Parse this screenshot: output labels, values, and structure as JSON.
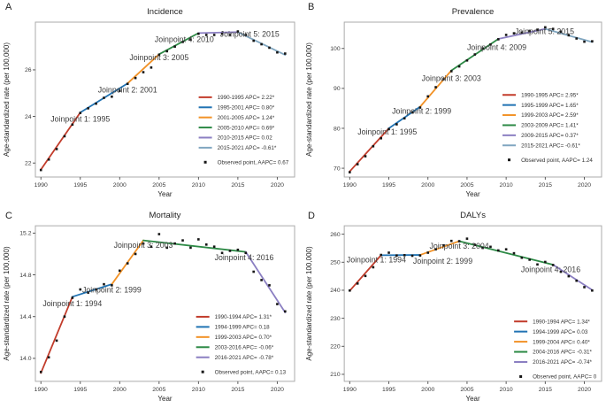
{
  "figure": {
    "x_axis_label": "Year",
    "y_axis_label": "Age-standardized rate (per 100,000)"
  },
  "colors": {
    "segment_palette": [
      "#c23c2b",
      "#2173b3",
      "#f29227",
      "#2d8a46",
      "#8b7fc2",
      "#80a6c0"
    ],
    "observed_point": "#161616",
    "plot_border": "#ababab"
  },
  "chart_data": [
    {
      "type": "line",
      "panel_letter": "A",
      "title": "Incidence",
      "xlabel": "Year",
      "ylabel": "Age-standardized rate (per 100,000)",
      "xlim": [
        1989.3,
        2022.2
      ],
      "ylim": [
        21.4,
        28.05
      ],
      "x_ticks": [
        1990,
        1995,
        2000,
        2005,
        2010,
        2015,
        2020
      ],
      "y_ticks": [
        22,
        24,
        26
      ],
      "y_tick_labels": [
        "22",
        "24",
        "26"
      ],
      "segments": [
        {
          "label": "1990-1995 APC= 2.22*",
          "x": [
            1990,
            1995
          ],
          "y": [
            21.72,
            24.17
          ]
        },
        {
          "label": "1995-2001 APC= 0.80*",
          "x": [
            1995,
            2001
          ],
          "y": [
            24.17,
            25.42
          ]
        },
        {
          "label": "2001-2005 APC= 1.24*",
          "x": [
            2001,
            2005
          ],
          "y": [
            25.42,
            26.67
          ]
        },
        {
          "label": "2005-2010 APC= 0.69*",
          "x": [
            2005,
            2010
          ],
          "y": [
            26.67,
            27.58
          ]
        },
        {
          "label": "2010-2015 APC= 0.02",
          "x": [
            2010,
            2015
          ],
          "y": [
            27.58,
            27.62
          ]
        },
        {
          "label": "2015-2021 APC= -0.61*",
          "x": [
            2015,
            2021
          ],
          "y": [
            27.62,
            26.64
          ]
        }
      ],
      "observed": {
        "legend_label": "Observed point, AAPC= 0.67",
        "x": [
          1990,
          1991,
          1992,
          1993,
          1994,
          1995,
          1996,
          1997,
          1998,
          1999,
          2000,
          2001,
          2002,
          2003,
          2004,
          2005,
          2006,
          2007,
          2008,
          2009,
          2010,
          2011,
          2012,
          2013,
          2014,
          2015,
          2016,
          2017,
          2018,
          2019,
          2020,
          2021
        ],
        "y": [
          21.7,
          22.15,
          22.6,
          23.15,
          23.65,
          24.15,
          24.35,
          24.55,
          24.8,
          24.85,
          25.1,
          25.4,
          25.65,
          25.9,
          26.1,
          26.65,
          26.8,
          27.0,
          27.2,
          27.3,
          27.55,
          27.5,
          27.5,
          27.55,
          27.5,
          27.65,
          27.5,
          27.25,
          27.1,
          26.95,
          26.75,
          26.7
        ]
      },
      "annotations": [
        {
          "text": "Joinpoint 1: 1995",
          "x": 1995.0,
          "y": 23.78
        },
        {
          "text": "Joinpoint 2: 2001",
          "x": 2001.0,
          "y": 25.02
        },
        {
          "text": "Joinpoint 3: 2005",
          "x": 2005.0,
          "y": 26.42
        },
        {
          "text": "Joinpoint 4: 2010",
          "x": 2008.2,
          "y": 27.2
        },
        {
          "text": "Joinpoint 5: 2015",
          "x": 2016.5,
          "y": 27.42
        }
      ],
      "legend": {
        "fx": 0.63,
        "fy": 0.485
      }
    },
    {
      "type": "line",
      "panel_letter": "B",
      "title": "Prevalence",
      "xlabel": "Year",
      "ylabel": "Age-standardized rate (per 100,000)",
      "xlim": [
        1989.3,
        2022.2
      ],
      "ylim": [
        67.8,
        106.6
      ],
      "x_ticks": [
        1990,
        1995,
        2000,
        2005,
        2010,
        2015,
        2020
      ],
      "y_ticks": [
        70,
        80,
        90,
        100
      ],
      "y_tick_labels": [
        "70",
        "80",
        "90",
        "100"
      ],
      "segments": [
        {
          "label": "1990-1995 APC= 2.95*",
          "x": [
            1990,
            1995
          ],
          "y": [
            69.2,
            80.0
          ]
        },
        {
          "label": "1995-1999 APC= 1.65*",
          "x": [
            1995,
            1999
          ],
          "y": [
            80.0,
            85.4
          ]
        },
        {
          "label": "1999-2003 APC= 2.59*",
          "x": [
            1999,
            2003
          ],
          "y": [
            85.4,
            94.5
          ]
        },
        {
          "label": "2003-2009 APC= 1.41*",
          "x": [
            2003,
            2009
          ],
          "y": [
            94.5,
            102.4
          ]
        },
        {
          "label": "2009-2015 APC= 0.37*",
          "x": [
            2009,
            2015
          ],
          "y": [
            102.4,
            104.9
          ]
        },
        {
          "label": "2015-2021 APC= -0.61*",
          "x": [
            2015,
            2021
          ],
          "y": [
            104.9,
            101.6
          ]
        }
      ],
      "observed": {
        "legend_label": "Observed point, AAPC= 1.24",
        "x": [
          1990,
          1991,
          1992,
          1993,
          1994,
          1995,
          1996,
          1997,
          1998,
          1999,
          2000,
          2001,
          2002,
          2003,
          2004,
          2005,
          2006,
          2007,
          2008,
          2009,
          2010,
          2011,
          2012,
          2013,
          2014,
          2015,
          2016,
          2017,
          2018,
          2019,
          2020,
          2021
        ],
        "y": [
          69,
          71,
          73,
          75.5,
          77.5,
          79.8,
          81,
          82.5,
          84,
          85.2,
          88,
          90.3,
          92.3,
          94.3,
          95.5,
          97,
          98.5,
          100,
          101,
          102.3,
          103.4,
          103.8,
          104,
          104.4,
          104.7,
          105.3,
          104.9,
          104.2,
          103.3,
          102.5,
          101.7,
          101.8
        ]
      },
      "annotations": [
        {
          "text": "Joinpoint 1: 1995",
          "x": 1994.8,
          "y": 78.4
        },
        {
          "text": "Joinpoint 2: 1999",
          "x": 1999.2,
          "y": 83.6
        },
        {
          "text": "Joinpoint 3: 2003",
          "x": 2003.0,
          "y": 91.9
        },
        {
          "text": "Joinpoint 4: 2009",
          "x": 2008.8,
          "y": 99.6
        },
        {
          "text": "Joinpoint 5: 2015",
          "x": 2014.9,
          "y": 103.6
        }
      ],
      "legend": {
        "fx": 0.615,
        "fy": 0.47
      }
    },
    {
      "type": "line",
      "panel_letter": "C",
      "title": "Mortality",
      "xlabel": "Year",
      "ylabel": "Age-standardized rate (per 100,000)",
      "xlim": [
        1989.3,
        2022.2
      ],
      "ylim": [
        13.78,
        15.27
      ],
      "x_ticks": [
        1990,
        1995,
        2000,
        2005,
        2010,
        2015,
        2020
      ],
      "y_ticks": [
        14.0,
        14.4,
        14.8,
        15.2
      ],
      "y_tick_labels": [
        "14.0",
        "14.4",
        "14.8",
        "15.2"
      ],
      "segments": [
        {
          "label": "1990-1994 APC= 1.31*",
          "x": [
            1990,
            1994
          ],
          "y": [
            13.86,
            14.59
          ]
        },
        {
          "label": "1994-1999 APC= 0.18",
          "x": [
            1994,
            1999
          ],
          "y": [
            14.59,
            14.71
          ]
        },
        {
          "label": "1999-2003 APC= 0.70*",
          "x": [
            1999,
            2003
          ],
          "y": [
            14.71,
            15.13
          ]
        },
        {
          "label": "2003-2016 APC= -0.06*",
          "x": [
            2003,
            2016
          ],
          "y": [
            15.13,
            15.02
          ]
        },
        {
          "label": "2016-2021 APC= -0.78*",
          "x": [
            2016,
            2021
          ],
          "y": [
            15.02,
            14.44
          ]
        }
      ],
      "observed": {
        "legend_label": "Observed point, AAPC= 0.13",
        "x": [
          1990,
          1991,
          1992,
          1993,
          1994,
          1995,
          1996,
          1997,
          1998,
          1999,
          2000,
          2001,
          2002,
          2003,
          2004,
          2005,
          2006,
          2007,
          2008,
          2009,
          2010,
          2011,
          2012,
          2013,
          2014,
          2015,
          2016,
          2017,
          2018,
          2019,
          2020,
          2021
        ],
        "y": [
          13.87,
          14.01,
          14.17,
          14.4,
          14.58,
          14.66,
          14.63,
          14.66,
          14.71,
          14.7,
          14.84,
          14.91,
          15.0,
          15.1,
          15.07,
          15.19,
          15.06,
          15.1,
          15.13,
          15.06,
          15.14,
          15.09,
          15.07,
          15.01,
          15.03,
          15.04,
          15.01,
          14.83,
          14.75,
          14.7,
          14.52,
          14.45
        ]
      },
      "annotations": [
        {
          "text": "Joinpoint 1: 1994",
          "x": 1994.0,
          "y": 14.5
        },
        {
          "text": "Joinpoint 2: 1999",
          "x": 1999.0,
          "y": 14.63
        },
        {
          "text": "Joinpoint 3: 2003",
          "x": 2003.0,
          "y": 15.06
        },
        {
          "text": "Joinpoint 4: 2016",
          "x": 2015.8,
          "y": 14.94
        }
      ],
      "legend": {
        "fx": 0.62,
        "fy": 0.585
      }
    },
    {
      "type": "line",
      "panel_letter": "D",
      "title": "DALYs",
      "xlabel": "Year",
      "ylabel": "Age-standardized rate (per 100,000)",
      "xlim": [
        1989.3,
        2022.2
      ],
      "ylim": [
        207.5,
        263
      ],
      "x_ticks": [
        1990,
        1995,
        2000,
        2005,
        2010,
        2015,
        2020
      ],
      "y_ticks": [
        210,
        220,
        230,
        240,
        250,
        260
      ],
      "y_tick_labels": [
        "210",
        "220",
        "230",
        "240",
        "250",
        "260"
      ],
      "segments": [
        {
          "label": "1990-1994 APC= 1.34*",
          "x": [
            1990,
            1994
          ],
          "y": [
            239.8,
            252.5
          ]
        },
        {
          "label": "1994-1999 APC= 0.03",
          "x": [
            1994,
            1999
          ],
          "y": [
            252.5,
            252.6
          ]
        },
        {
          "label": "1999-2004 APC= 0.40*",
          "x": [
            1999,
            2004
          ],
          "y": [
            252.6,
            257.5
          ]
        },
        {
          "label": "2004-2016 APC= -0.31*",
          "x": [
            2004,
            2016
          ],
          "y": [
            257.5,
            249.1
          ]
        },
        {
          "label": "2016-2021 APC= -0.74*",
          "x": [
            2016,
            2021
          ],
          "y": [
            249.1,
            240.1
          ]
        }
      ],
      "observed": {
        "legend_label": "Observed point, AAPC= 0",
        "x": [
          1990,
          1991,
          1992,
          1993,
          1994,
          1995,
          1996,
          1997,
          1998,
          1999,
          2000,
          2001,
          2002,
          2003,
          2004,
          2005,
          2006,
          2007,
          2008,
          2009,
          2010,
          2011,
          2012,
          2013,
          2014,
          2015,
          2016,
          2017,
          2018,
          2019,
          2020,
          2021
        ],
        "y": [
          239.9,
          242.4,
          245.1,
          248.2,
          252.6,
          253.4,
          252.4,
          252.5,
          252.3,
          252.4,
          253.4,
          254.6,
          256.0,
          257.6,
          257.5,
          258.4,
          256.2,
          255.1,
          255.5,
          254.2,
          254.6,
          253.2,
          251.6,
          250.9,
          249.2,
          250.1,
          249.0,
          246.6,
          245.0,
          243.4,
          241.1,
          239.9
        ]
      },
      "annotations": [
        {
          "text": "Joinpoint 1: 1994",
          "x": 1993.4,
          "y": 250.0
        },
        {
          "text": "Joinpoint 2: 1999",
          "x": 2001.9,
          "y": 249.5
        },
        {
          "text": "Joinpoint 3: 2004",
          "x": 2004.0,
          "y": 254.8
        },
        {
          "text": "Joinpoint 4: 2016",
          "x": 2015.7,
          "y": 246.4
        }
      ],
      "legend": {
        "fx": 0.66,
        "fy": 0.615
      }
    }
  ]
}
